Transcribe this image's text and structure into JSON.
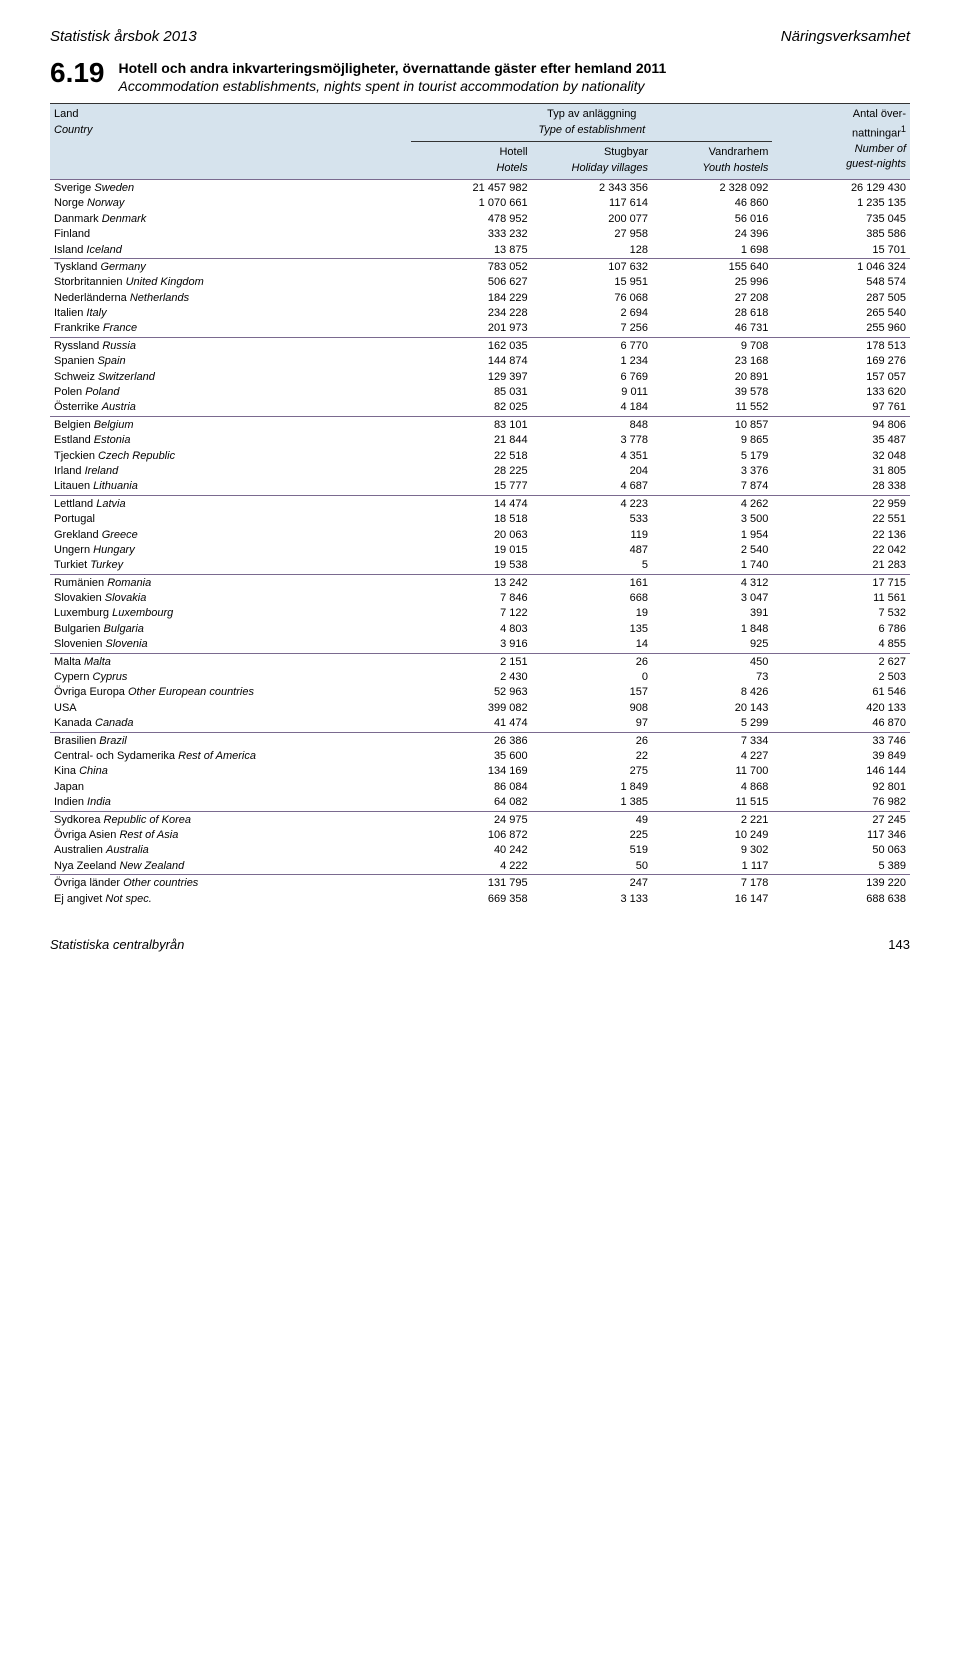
{
  "header": {
    "left": "Statistisk årsbok 2013",
    "right": "Näringsverksamhet"
  },
  "section": {
    "number": "6.19",
    "title_sv": "Hotell och andra inkvarteringsmöjligheter, övernattande gäster efter hemland 2011",
    "title_en": "Accommodation establishments, nights spent in tourist accommodation by nationality"
  },
  "table_headers": {
    "land_sv": "Land",
    "land_en": "Country",
    "typ_sv": "Typ av anläggning",
    "typ_en": "Type of establishment",
    "antal_sv": "Antal över-",
    "antal_sv2": "nattningar",
    "antal_sup": "1",
    "antal_en": "Number of",
    "antal_en2": "guest-nights",
    "hotell_sv": "Hotell",
    "hotell_en": "Hotels",
    "stugbyar_sv": "Stugbyar",
    "stugbyar_en": "Holiday villages",
    "vandr_sv": "Vandrarhem",
    "vandr_en": "Youth hostels"
  },
  "groups": [
    [
      {
        "sv": "Sverige",
        "en": "Sweden",
        "c1": "21 457 982",
        "c2": "2 343 356",
        "c3": "2 328 092",
        "c4": "26 129 430"
      },
      {
        "sv": "Norge",
        "en": "Norway",
        "c1": "1 070 661",
        "c2": "117 614",
        "c3": "46 860",
        "c4": "1 235 135"
      },
      {
        "sv": "Danmark",
        "en": "Denmark",
        "c1": "478 952",
        "c2": "200 077",
        "c3": "56 016",
        "c4": "735 045"
      },
      {
        "sv": "Finland",
        "en": "",
        "c1": "333 232",
        "c2": "27 958",
        "c3": "24 396",
        "c4": "385 586"
      },
      {
        "sv": "Island",
        "en": "Iceland",
        "c1": "13 875",
        "c2": "128",
        "c3": "1 698",
        "c4": "15 701"
      }
    ],
    [
      {
        "sv": "Tyskland",
        "en": "Germany",
        "c1": "783 052",
        "c2": "107 632",
        "c3": "155 640",
        "c4": "1 046 324"
      },
      {
        "sv": "Storbritannien",
        "en": "United Kingdom",
        "c1": "506 627",
        "c2": "15 951",
        "c3": "25 996",
        "c4": "548 574"
      },
      {
        "sv": "Nederländerna",
        "en": "Netherlands",
        "c1": "184 229",
        "c2": "76 068",
        "c3": "27 208",
        "c4": "287 505"
      },
      {
        "sv": "Italien",
        "en": "Italy",
        "c1": "234 228",
        "c2": "2 694",
        "c3": "28 618",
        "c4": "265 540"
      },
      {
        "sv": "Frankrike",
        "en": "France",
        "c1": "201 973",
        "c2": "7 256",
        "c3": "46 731",
        "c4": "255 960"
      }
    ],
    [
      {
        "sv": "Ryssland",
        "en": "Russia",
        "c1": "162 035",
        "c2": "6 770",
        "c3": "9 708",
        "c4": "178 513"
      },
      {
        "sv": "Spanien",
        "en": "Spain",
        "c1": "144 874",
        "c2": "1 234",
        "c3": "23 168",
        "c4": "169 276"
      },
      {
        "sv": "Schweiz",
        "en": "Switzerland",
        "c1": "129 397",
        "c2": "6 769",
        "c3": "20 891",
        "c4": "157 057"
      },
      {
        "sv": "Polen",
        "en": "Poland",
        "c1": "85 031",
        "c2": "9 011",
        "c3": "39 578",
        "c4": "133 620"
      },
      {
        "sv": "Österrike",
        "en": "Austria",
        "c1": "82 025",
        "c2": "4 184",
        "c3": "11 552",
        "c4": "97 761"
      }
    ],
    [
      {
        "sv": "Belgien",
        "en": "Belgium",
        "c1": "83 101",
        "c2": "848",
        "c3": "10 857",
        "c4": "94 806"
      },
      {
        "sv": "Estland",
        "en": "Estonia",
        "c1": "21 844",
        "c2": "3 778",
        "c3": "9 865",
        "c4": "35 487"
      },
      {
        "sv": "Tjeckien",
        "en": "Czech Republic",
        "c1": "22 518",
        "c2": "4 351",
        "c3": "5 179",
        "c4": "32 048"
      },
      {
        "sv": "Irland",
        "en": "Ireland",
        "c1": "28 225",
        "c2": "204",
        "c3": "3 376",
        "c4": "31 805"
      },
      {
        "sv": "Litauen",
        "en": "Lithuania",
        "c1": "15 777",
        "c2": "4 687",
        "c3": "7 874",
        "c4": "28 338"
      }
    ],
    [
      {
        "sv": "Lettland",
        "en": "Latvia",
        "c1": "14 474",
        "c2": "4 223",
        "c3": "4 262",
        "c4": "22 959"
      },
      {
        "sv": "Portugal",
        "en": "",
        "c1": "18 518",
        "c2": "533",
        "c3": "3 500",
        "c4": "22 551"
      },
      {
        "sv": "Grekland",
        "en": "Greece",
        "c1": "20 063",
        "c2": "119",
        "c3": "1 954",
        "c4": "22 136"
      },
      {
        "sv": "Ungern",
        "en": "Hungary",
        "c1": "19 015",
        "c2": "487",
        "c3": "2 540",
        "c4": "22 042"
      },
      {
        "sv": "Turkiet",
        "en": "Turkey",
        "c1": "19 538",
        "c2": "5",
        "c3": "1 740",
        "c4": "21 283"
      }
    ],
    [
      {
        "sv": "Rumänien",
        "en": "Romania",
        "c1": "13 242",
        "c2": "161",
        "c3": "4 312",
        "c4": "17 715"
      },
      {
        "sv": "Slovakien",
        "en": "Slovakia",
        "c1": "7 846",
        "c2": "668",
        "c3": "3 047",
        "c4": "11 561"
      },
      {
        "sv": "Luxemburg",
        "en": "Luxembourg",
        "c1": "7 122",
        "c2": "19",
        "c3": "391",
        "c4": "7 532"
      },
      {
        "sv": "Bulgarien",
        "en": "Bulgaria",
        "c1": "4 803",
        "c2": "135",
        "c3": "1 848",
        "c4": "6 786"
      },
      {
        "sv": "Slovenien",
        "en": "Slovenia",
        "c1": "3 916",
        "c2": "14",
        "c3": "925",
        "c4": "4 855"
      }
    ],
    [
      {
        "sv": "Malta",
        "en": "Malta",
        "c1": "2 151",
        "c2": "26",
        "c3": "450",
        "c4": "2 627"
      },
      {
        "sv": "Cypern",
        "en": "Cyprus",
        "c1": "2 430",
        "c2": "0",
        "c3": "73",
        "c4": "2 503"
      },
      {
        "sv": "Övriga Europa",
        "en": "Other European countries",
        "c1": "52 963",
        "c2": "157",
        "c3": "8 426",
        "c4": "61 546"
      },
      {
        "sv": "USA",
        "en": "",
        "c1": "399 082",
        "c2": "908",
        "c3": "20 143",
        "c4": "420 133"
      },
      {
        "sv": "Kanada",
        "en": "Canada",
        "c1": "41 474",
        "c2": "97",
        "c3": "5 299",
        "c4": "46 870"
      }
    ],
    [
      {
        "sv": "Brasilien",
        "en": "Brazil",
        "c1": "26 386",
        "c2": "26",
        "c3": "7 334",
        "c4": "33 746"
      },
      {
        "sv": "Central- och Sydamerika",
        "en": "Rest of America",
        "c1": "35 600",
        "c2": "22",
        "c3": "4 227",
        "c4": "39 849"
      },
      {
        "sv": "Kina",
        "en": "China",
        "c1": "134 169",
        "c2": "275",
        "c3": "11 700",
        "c4": "146 144"
      },
      {
        "sv": "Japan",
        "en": "",
        "c1": "86 084",
        "c2": "1 849",
        "c3": "4 868",
        "c4": "92 801"
      },
      {
        "sv": "Indien",
        "en": "India",
        "c1": "64 082",
        "c2": "1 385",
        "c3": "11 515",
        "c4": "76 982"
      }
    ],
    [
      {
        "sv": "Sydkorea",
        "en": "Republic of Korea",
        "c1": "24 975",
        "c2": "49",
        "c3": "2 221",
        "c4": "27 245"
      },
      {
        "sv": "Övriga Asien",
        "en": "Rest of Asia",
        "c1": "106 872",
        "c2": "225",
        "c3": "10 249",
        "c4": "117 346"
      },
      {
        "sv": "Australien",
        "en": "Australia",
        "c1": "40 242",
        "c2": "519",
        "c3": "9 302",
        "c4": "50 063"
      },
      {
        "sv": "Nya Zeeland",
        "en": "New Zealand",
        "c1": "4 222",
        "c2": "50",
        "c3": "1 117",
        "c4": "5 389"
      }
    ],
    [
      {
        "sv": "Övriga länder",
        "en": "Other countries",
        "c1": "131 795",
        "c2": "247",
        "c3": "7 178",
        "c4": "139 220"
      },
      {
        "sv": "Ej angivet",
        "en": "Not spec.",
        "c1": "669 358",
        "c2": "3 133",
        "c3": "16 147",
        "c4": "688 638"
      }
    ]
  ],
  "footer": {
    "left": "Statistiska centralbyrån",
    "page": "143"
  },
  "style": {
    "header_bg": "#d6e3ed",
    "group_border": "#7a6a8f"
  }
}
